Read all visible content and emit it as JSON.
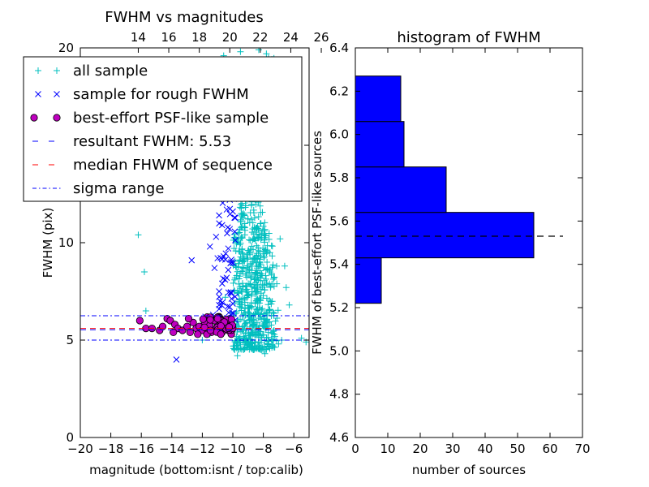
{
  "chart_data": [
    {
      "type": "scatter",
      "title": "FWHM vs magnitudes",
      "xlabel": "magnitude (bottom:isnt / top:calib)",
      "ylabel": "FWHM (pix)",
      "xlim": [
        -20,
        -5
      ],
      "ylim": [
        0,
        20
      ],
      "x_ticks": [
        -20,
        -18,
        -16,
        -14,
        -12,
        -10,
        -8,
        -6
      ],
      "x_tick_labels": [
        "−20",
        "−18",
        "−16",
        "−14",
        "−12",
        "−10",
        "−8",
        "−6"
      ],
      "y_ticks": [
        0,
        5,
        10,
        15,
        20
      ],
      "y_tick_labels": [
        "0",
        "5",
        "10",
        "15",
        "20"
      ],
      "top_ticks": [
        14,
        16,
        18,
        20,
        22,
        24,
        26
      ],
      "top_tick_labels": [
        "14",
        "16",
        "18",
        "20",
        "22",
        "24",
        "26"
      ],
      "top_offset": 30.2,
      "grid": false,
      "legend_position": "upper-left",
      "legend": [
        {
          "label": "all sample",
          "marker": "+",
          "color": "#00bfbf"
        },
        {
          "label": "sample for rough FWHM",
          "marker": "x",
          "color": "#0000ff"
        },
        {
          "label": "best-effort PSF-like sample",
          "marker": "circle",
          "color": "#bf00bf"
        },
        {
          "label": "resultant FWHM: 5.53",
          "marker": "dashed-line",
          "color": "#0000ff"
        },
        {
          "label": "median FHWM of sequence",
          "marker": "dashed-line",
          "color": "#ff0000"
        },
        {
          "label": "sigma range",
          "marker": "dashdot-line",
          "color": "#0000ff"
        }
      ],
      "lines": {
        "resultant_fwhm": 5.53,
        "median_fwhm": 5.6,
        "sigma_range": [
          5.0,
          6.25
        ]
      },
      "series": [
        {
          "name": "all sample",
          "marker": "+",
          "color": "#00bfbf",
          "points": [
            [
              -16.2,
              10.4
            ],
            [
              -15.8,
              8.5
            ],
            [
              -15.7,
              6.5
            ],
            [
              -9.7,
              4.2
            ],
            [
              -12.0,
              5.0
            ],
            [
              -11.5,
              5.3
            ],
            [
              -5.2,
              4.9
            ],
            [
              -5.5,
              5.1
            ],
            [
              -6.3,
              6.8
            ],
            [
              -6.5,
              7.7
            ],
            [
              -6.8,
              5.0
            ],
            [
              -7.0,
              4.8
            ],
            [
              -7.3,
              5.5
            ],
            [
              -9.5,
              19.8
            ],
            [
              -8.3,
              19.9
            ],
            [
              -10.6,
              19.6
            ],
            [
              -7.8,
              19.7
            ],
            [
              -7.2,
              17.5
            ],
            [
              -7.5,
              14.1
            ],
            [
              -7.0,
              13.0
            ],
            [
              -9.8,
              13.6
            ],
            [
              -6.9,
              10.2
            ],
            [
              -6.6,
              8.8
            ],
            [
              -10.1,
              6.4
            ],
            [
              -10.5,
              7.2
            ],
            [
              -7.9,
              4.3
            ]
          ],
          "cluster": {
            "x": [
              -10.0,
              -6.5
            ],
            "y": [
              4.5,
              14.0
            ],
            "peak_x": -8.8
          }
        },
        {
          "name": "sample for rough FWHM",
          "marker": "x",
          "color": "#0000ff",
          "points": [
            [
              -13.7,
              4.0
            ],
            [
              -12.7,
              9.1
            ],
            [
              -11.1,
              10.3
            ],
            [
              -11.5,
              9.8
            ],
            [
              -11.2,
              8.7
            ],
            [
              -10.9,
              7.5
            ],
            [
              -10.9,
              11.4
            ],
            [
              -10.6,
              12.8
            ],
            [
              -11.2,
              12.4
            ],
            [
              -10.4,
              11.7
            ],
            [
              -10.3,
              13.1
            ],
            [
              -10.7,
              10.9
            ],
            [
              -10.5,
              8.1
            ],
            [
              -10.1,
              7.4
            ],
            [
              -10.9,
              6.8
            ],
            [
              -11.3,
              6.3
            ],
            [
              -10.6,
              6.0
            ],
            [
              -10.1,
              9.0
            ],
            [
              -10.3,
              9.7
            ],
            [
              -10.8,
              13.6
            ],
            [
              -10.4,
              14.2
            ],
            [
              -10.2,
              12.2
            ],
            [
              -10.4,
              12.5
            ],
            [
              -10.0,
              11.6
            ],
            [
              -10.6,
              9.3
            ],
            [
              -10.2,
              10.7
            ],
            [
              -11.0,
              9.2
            ],
            [
              -10.7,
              7.9
            ],
            [
              -10.3,
              8.6
            ],
            [
              -10.2,
              6.7
            ],
            [
              -11.8,
              6.2
            ],
            [
              -11.9,
              5.8
            ],
            [
              -11.3,
              5.9
            ]
          ]
        },
        {
          "name": "best-effort PSF-like sample",
          "marker": "circle",
          "color": "#bf00bf",
          "points": [
            [
              -16.1,
              6.0
            ],
            [
              -15.7,
              5.6
            ],
            [
              -15.3,
              5.6
            ],
            [
              -14.8,
              5.5
            ],
            [
              -14.6,
              5.7
            ],
            [
              -14.3,
              6.1
            ],
            [
              -14.1,
              6.0
            ],
            [
              -13.8,
              5.8
            ],
            [
              -13.6,
              5.6
            ],
            [
              -13.3,
              5.5
            ],
            [
              -13.0,
              5.7
            ],
            [
              -12.8,
              5.4
            ],
            [
              -12.6,
              5.9
            ],
            [
              -12.4,
              5.6
            ],
            [
              -12.2,
              5.7
            ],
            [
              -12.0,
              5.5
            ],
            [
              -11.8,
              5.8
            ],
            [
              -11.6,
              5.6
            ],
            [
              -11.4,
              5.4
            ],
            [
              -11.2,
              6.0
            ],
            [
              -11.0,
              5.7
            ],
            [
              -10.9,
              5.5
            ],
            [
              -10.8,
              6.1
            ],
            [
              -10.7,
              5.4
            ],
            [
              -10.6,
              5.9
            ],
            [
              -10.5,
              5.6
            ],
            [
              -10.4,
              5.8
            ],
            [
              -10.3,
              5.5
            ],
            [
              -10.2,
              6.1
            ],
            [
              -10.1,
              5.3
            ],
            [
              -13.9,
              5.4
            ],
            [
              -12.9,
              6.1
            ],
            [
              -11.7,
              5.3
            ],
            [
              -10.9,
              6.2
            ],
            [
              -12.3,
              5.3
            ]
          ]
        }
      ]
    },
    {
      "type": "bar",
      "orientation": "horizontal",
      "title": "histogram of FWHM",
      "xlabel": "number of sources",
      "ylabel": "FWHM of best-effort PSF-like sources",
      "xlim": [
        0,
        70
      ],
      "ylim": [
        4.6,
        6.4
      ],
      "x_ticks": [
        0,
        10,
        20,
        30,
        40,
        50,
        60,
        70
      ],
      "x_tick_labels": [
        "0",
        "10",
        "20",
        "30",
        "40",
        "50",
        "60",
        "70"
      ],
      "y_ticks": [
        4.6,
        4.8,
        5.0,
        5.2,
        5.4,
        5.6,
        5.8,
        6.0,
        6.2,
        6.4
      ],
      "y_tick_labels": [
        "4.6",
        "4.8",
        "5.0",
        "5.2",
        "5.4",
        "5.6",
        "5.8",
        "6.0",
        "6.2",
        "6.4"
      ],
      "grid": false,
      "bar_color": "#0000ff",
      "bins": [
        {
          "low": 5.22,
          "high": 5.43,
          "count": 8
        },
        {
          "low": 5.43,
          "high": 5.64,
          "count": 55
        },
        {
          "low": 5.64,
          "high": 5.85,
          "count": 28
        },
        {
          "low": 5.85,
          "high": 6.06,
          "count": 15
        },
        {
          "low": 6.06,
          "high": 6.27,
          "count": 14
        }
      ],
      "reference_line": {
        "y": 5.53,
        "x_range": [
          0,
          64
        ],
        "style": "dashed",
        "color": "#000000"
      }
    }
  ]
}
